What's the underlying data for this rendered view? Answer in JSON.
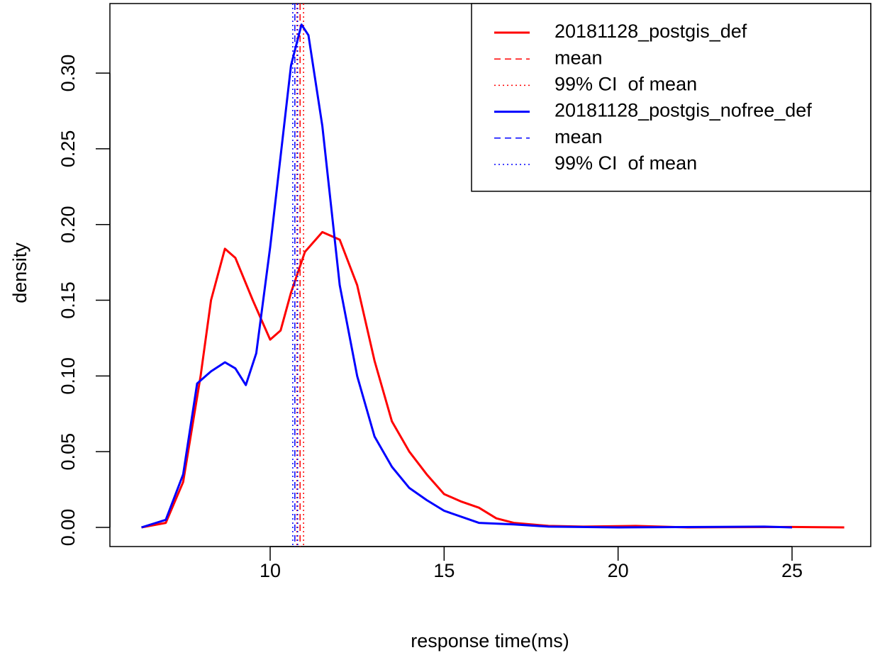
{
  "chart_data": {
    "type": "line",
    "x_label": "response time(ms)",
    "y_label": "density",
    "xlim": [
      5.394,
      27.262
    ],
    "ylim": [
      -0.01264,
      0.3459
    ],
    "xticks": [
      10,
      15,
      20,
      25
    ],
    "yticks": [
      {
        "value": 0,
        "label": "0.00"
      },
      {
        "value": 0.05,
        "label": "0.05"
      },
      {
        "value": 0.1,
        "label": "0.10"
      },
      {
        "value": 0.15,
        "label": "0.15"
      },
      {
        "value": 0.2,
        "label": "0.20"
      },
      {
        "value": 0.25,
        "label": "0.25"
      },
      {
        "value": 0.3,
        "label": "0.30"
      }
    ],
    "legend": "top-right",
    "series": [
      {
        "name": "20181128_postgis_def",
        "color": "#ff0000",
        "x": [
          6.3,
          7.0,
          7.5,
          8.0,
          8.3,
          8.7,
          9.0,
          9.5,
          10.0,
          10.3,
          10.6,
          11.0,
          11.5,
          12.0,
          12.5,
          13.0,
          13.5,
          14.0,
          14.5,
          15.0,
          15.5,
          16.0,
          16.5,
          17.0,
          18.0,
          19.0,
          20.5,
          22.0,
          25.0,
          26.5
        ],
        "values": [
          0,
          0.003,
          0.03,
          0.1,
          0.15,
          0.184,
          0.178,
          0.15,
          0.124,
          0.13,
          0.155,
          0.182,
          0.195,
          0.19,
          0.16,
          0.11,
          0.07,
          0.05,
          0.035,
          0.022,
          0.017,
          0.013,
          0.006,
          0.003,
          0.001,
          0.0005,
          0.001,
          0,
          0.0003,
          0
        ],
        "mean": {
          "name": "mean",
          "line_style": "dashed",
          "x": 10.86
        },
        "ci": {
          "name": "99% CI  of mean",
          "line_style": "dotted",
          "x": [
            10.77,
            10.96
          ]
        }
      },
      {
        "name": "20181128_postgis_nofree_def",
        "color": "#0000ff",
        "x": [
          6.3,
          7.0,
          7.5,
          7.9,
          8.3,
          8.7,
          9.0,
          9.3,
          9.6,
          10.0,
          10.3,
          10.6,
          10.9,
          11.1,
          11.5,
          12.0,
          12.5,
          13.0,
          13.5,
          14.0,
          14.5,
          15.0,
          16.0,
          17.0,
          18.0,
          20.0,
          24.2,
          25.0
        ],
        "values": [
          0,
          0.005,
          0.035,
          0.095,
          0.103,
          0.109,
          0.105,
          0.094,
          0.115,
          0.185,
          0.245,
          0.305,
          0.332,
          0.325,
          0.265,
          0.16,
          0.1,
          0.06,
          0.04,
          0.026,
          0.018,
          0.011,
          0.003,
          0.002,
          0.0005,
          0,
          0.0005,
          0
        ],
        "mean": {
          "name": "mean",
          "line_style": "dashed",
          "x": 10.71
        },
        "ci": {
          "name": "99% CI  of mean",
          "line_style": "dotted",
          "x": [
            10.65,
            10.79
          ]
        }
      }
    ]
  }
}
